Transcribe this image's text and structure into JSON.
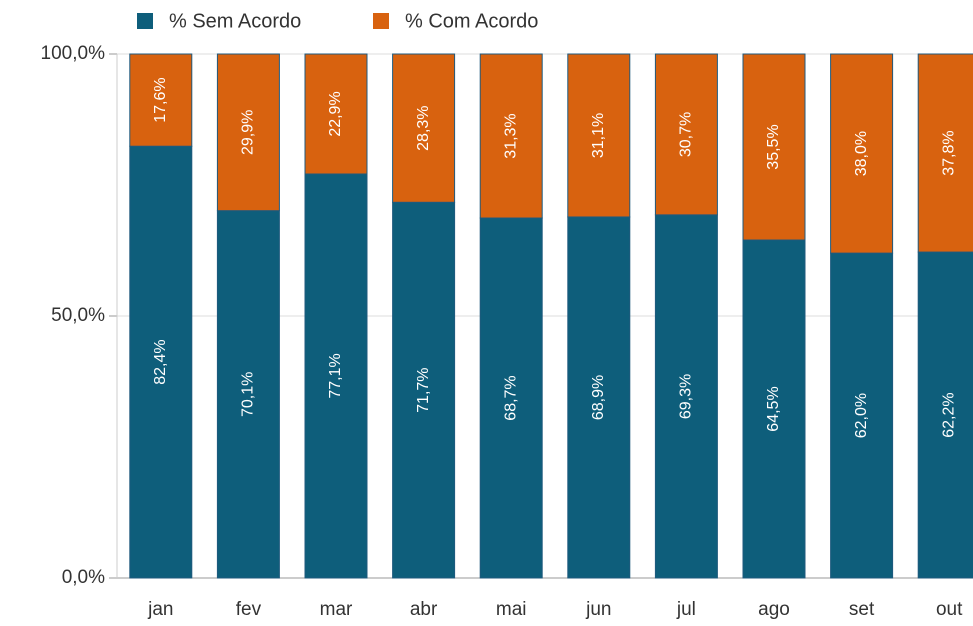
{
  "chart_data": {
    "type": "stacked_bar",
    "categories": [
      "jan",
      "fev",
      "mar",
      "abr",
      "mai",
      "jun",
      "jul",
      "ago",
      "set",
      "out"
    ],
    "series": [
      {
        "name": "% Sem Acordo",
        "color": "#0e5e7b",
        "values": [
          82.4,
          70.1,
          77.1,
          71.7,
          68.7,
          68.9,
          69.3,
          64.5,
          62.0,
          62.2
        ],
        "value_labels": [
          "82,4%",
          "70,1%",
          "77,1%",
          "71,7%",
          "68,7%",
          "68,9%",
          "69,3%",
          "64,5%",
          "62,0%",
          "62,2%"
        ]
      },
      {
        "name": "% Com Acordo",
        "color": "#d8620f",
        "values": [
          17.6,
          29.9,
          22.9,
          28.3,
          31.3,
          31.1,
          30.7,
          35.5,
          38.0,
          37.8
        ],
        "value_labels": [
          "17,6%",
          "29,9%",
          "22,9%",
          "28,3%",
          "31,3%",
          "31,1%",
          "30,7%",
          "35,5%",
          "38,0%",
          "37,8%"
        ]
      }
    ],
    "ylim": [
      0,
      100
    ],
    "yticks": [
      {
        "value": 0,
        "label": "0,0%"
      },
      {
        "value": 50,
        "label": "50,0%"
      },
      {
        "value": 100,
        "label": "100,0%"
      }
    ],
    "grid": true,
    "legend": "top"
  }
}
